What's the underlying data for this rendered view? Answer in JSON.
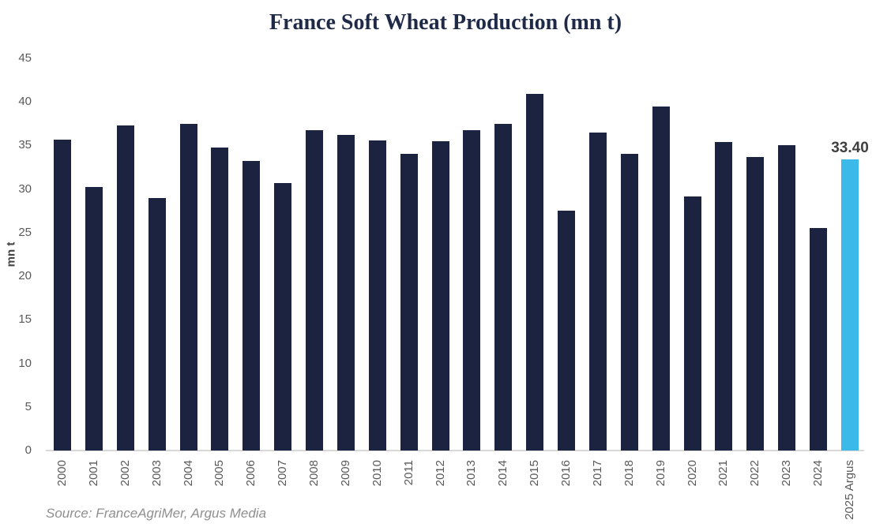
{
  "chart_data": {
    "type": "bar",
    "title": "France Soft Wheat Production (mn t)",
    "ylabel": "mn t",
    "xlabel": "",
    "source": "Source: FranceAgriMer, Argus Media",
    "categories": [
      "2000",
      "2001",
      "2002",
      "2003",
      "2004",
      "2005",
      "2006",
      "2007",
      "2008",
      "2009",
      "2010",
      "2011",
      "2012",
      "2013",
      "2014",
      "2015",
      "2016",
      "2017",
      "2018",
      "2019",
      "2020",
      "2021",
      "2022",
      "2023",
      "2024",
      "2025 Argus"
    ],
    "values": [
      35.7,
      30.2,
      37.3,
      29.0,
      37.5,
      34.8,
      33.2,
      30.7,
      36.8,
      36.2,
      35.6,
      34.0,
      35.5,
      36.8,
      37.5,
      40.9,
      27.5,
      36.5,
      34.0,
      39.5,
      29.2,
      35.4,
      33.7,
      35.0,
      25.5,
      33.4
    ],
    "highlight_index": 25,
    "highlight_label": "33.40",
    "ylim": [
      0,
      45
    ],
    "yticks": [
      0,
      5,
      10,
      15,
      20,
      25,
      30,
      35,
      40,
      45
    ],
    "grid": false,
    "legend": "none",
    "colors": {
      "bar": "#1c2340",
      "highlight_bar": "#3bb9e9",
      "title_text": "#1e2a47",
      "axis_text": "#595959",
      "axis_line": "#d9d9d9",
      "annotation_text": "#404040",
      "source_text": "#8f8f8f",
      "y_axis_title_text": "#454545"
    }
  }
}
